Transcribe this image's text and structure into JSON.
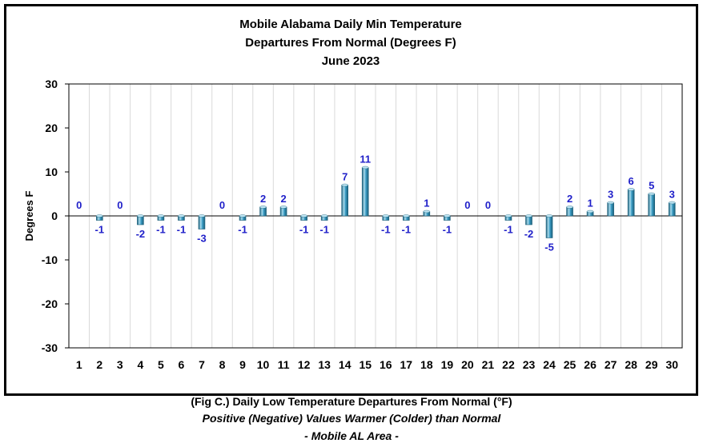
{
  "chart_data": {
    "type": "bar",
    "title_lines": [
      "Mobile Alabama Daily Min Temperature",
      "Departures From Normal (Degrees F)",
      "June 2023"
    ],
    "xlabel": "",
    "ylabel": "Degrees F",
    "ylim": [
      -30,
      30
    ],
    "yticks": [
      30,
      20,
      10,
      0,
      -10,
      -20,
      -30
    ],
    "categories": [
      "1",
      "2",
      "3",
      "4",
      "5",
      "6",
      "7",
      "8",
      "9",
      "10",
      "11",
      "12",
      "13",
      "14",
      "15",
      "16",
      "17",
      "18",
      "19",
      "20",
      "21",
      "22",
      "23",
      "24",
      "25",
      "26",
      "27",
      "28",
      "29",
      "30"
    ],
    "values": [
      0,
      -1,
      0,
      -2,
      -1,
      -1,
      -3,
      0,
      -1,
      2,
      2,
      -1,
      -1,
      7,
      11,
      -1,
      -1,
      1,
      -1,
      0,
      0,
      -1,
      -2,
      -5,
      2,
      1,
      3,
      6,
      5,
      3
    ],
    "grid": "vertical",
    "colors": {
      "bar_fill": "#3a9cc4",
      "bar_light": "#a9dcee",
      "bar_dark": "#1b5f7a",
      "label": "#1f1fc9"
    }
  },
  "caption": {
    "line1": "(Fig C.) Daily Low Temperature Departures From Normal (°F)",
    "line2": "Positive (Negative) Values Warmer (Colder) than Normal",
    "line3": "- Mobile AL Area -"
  }
}
